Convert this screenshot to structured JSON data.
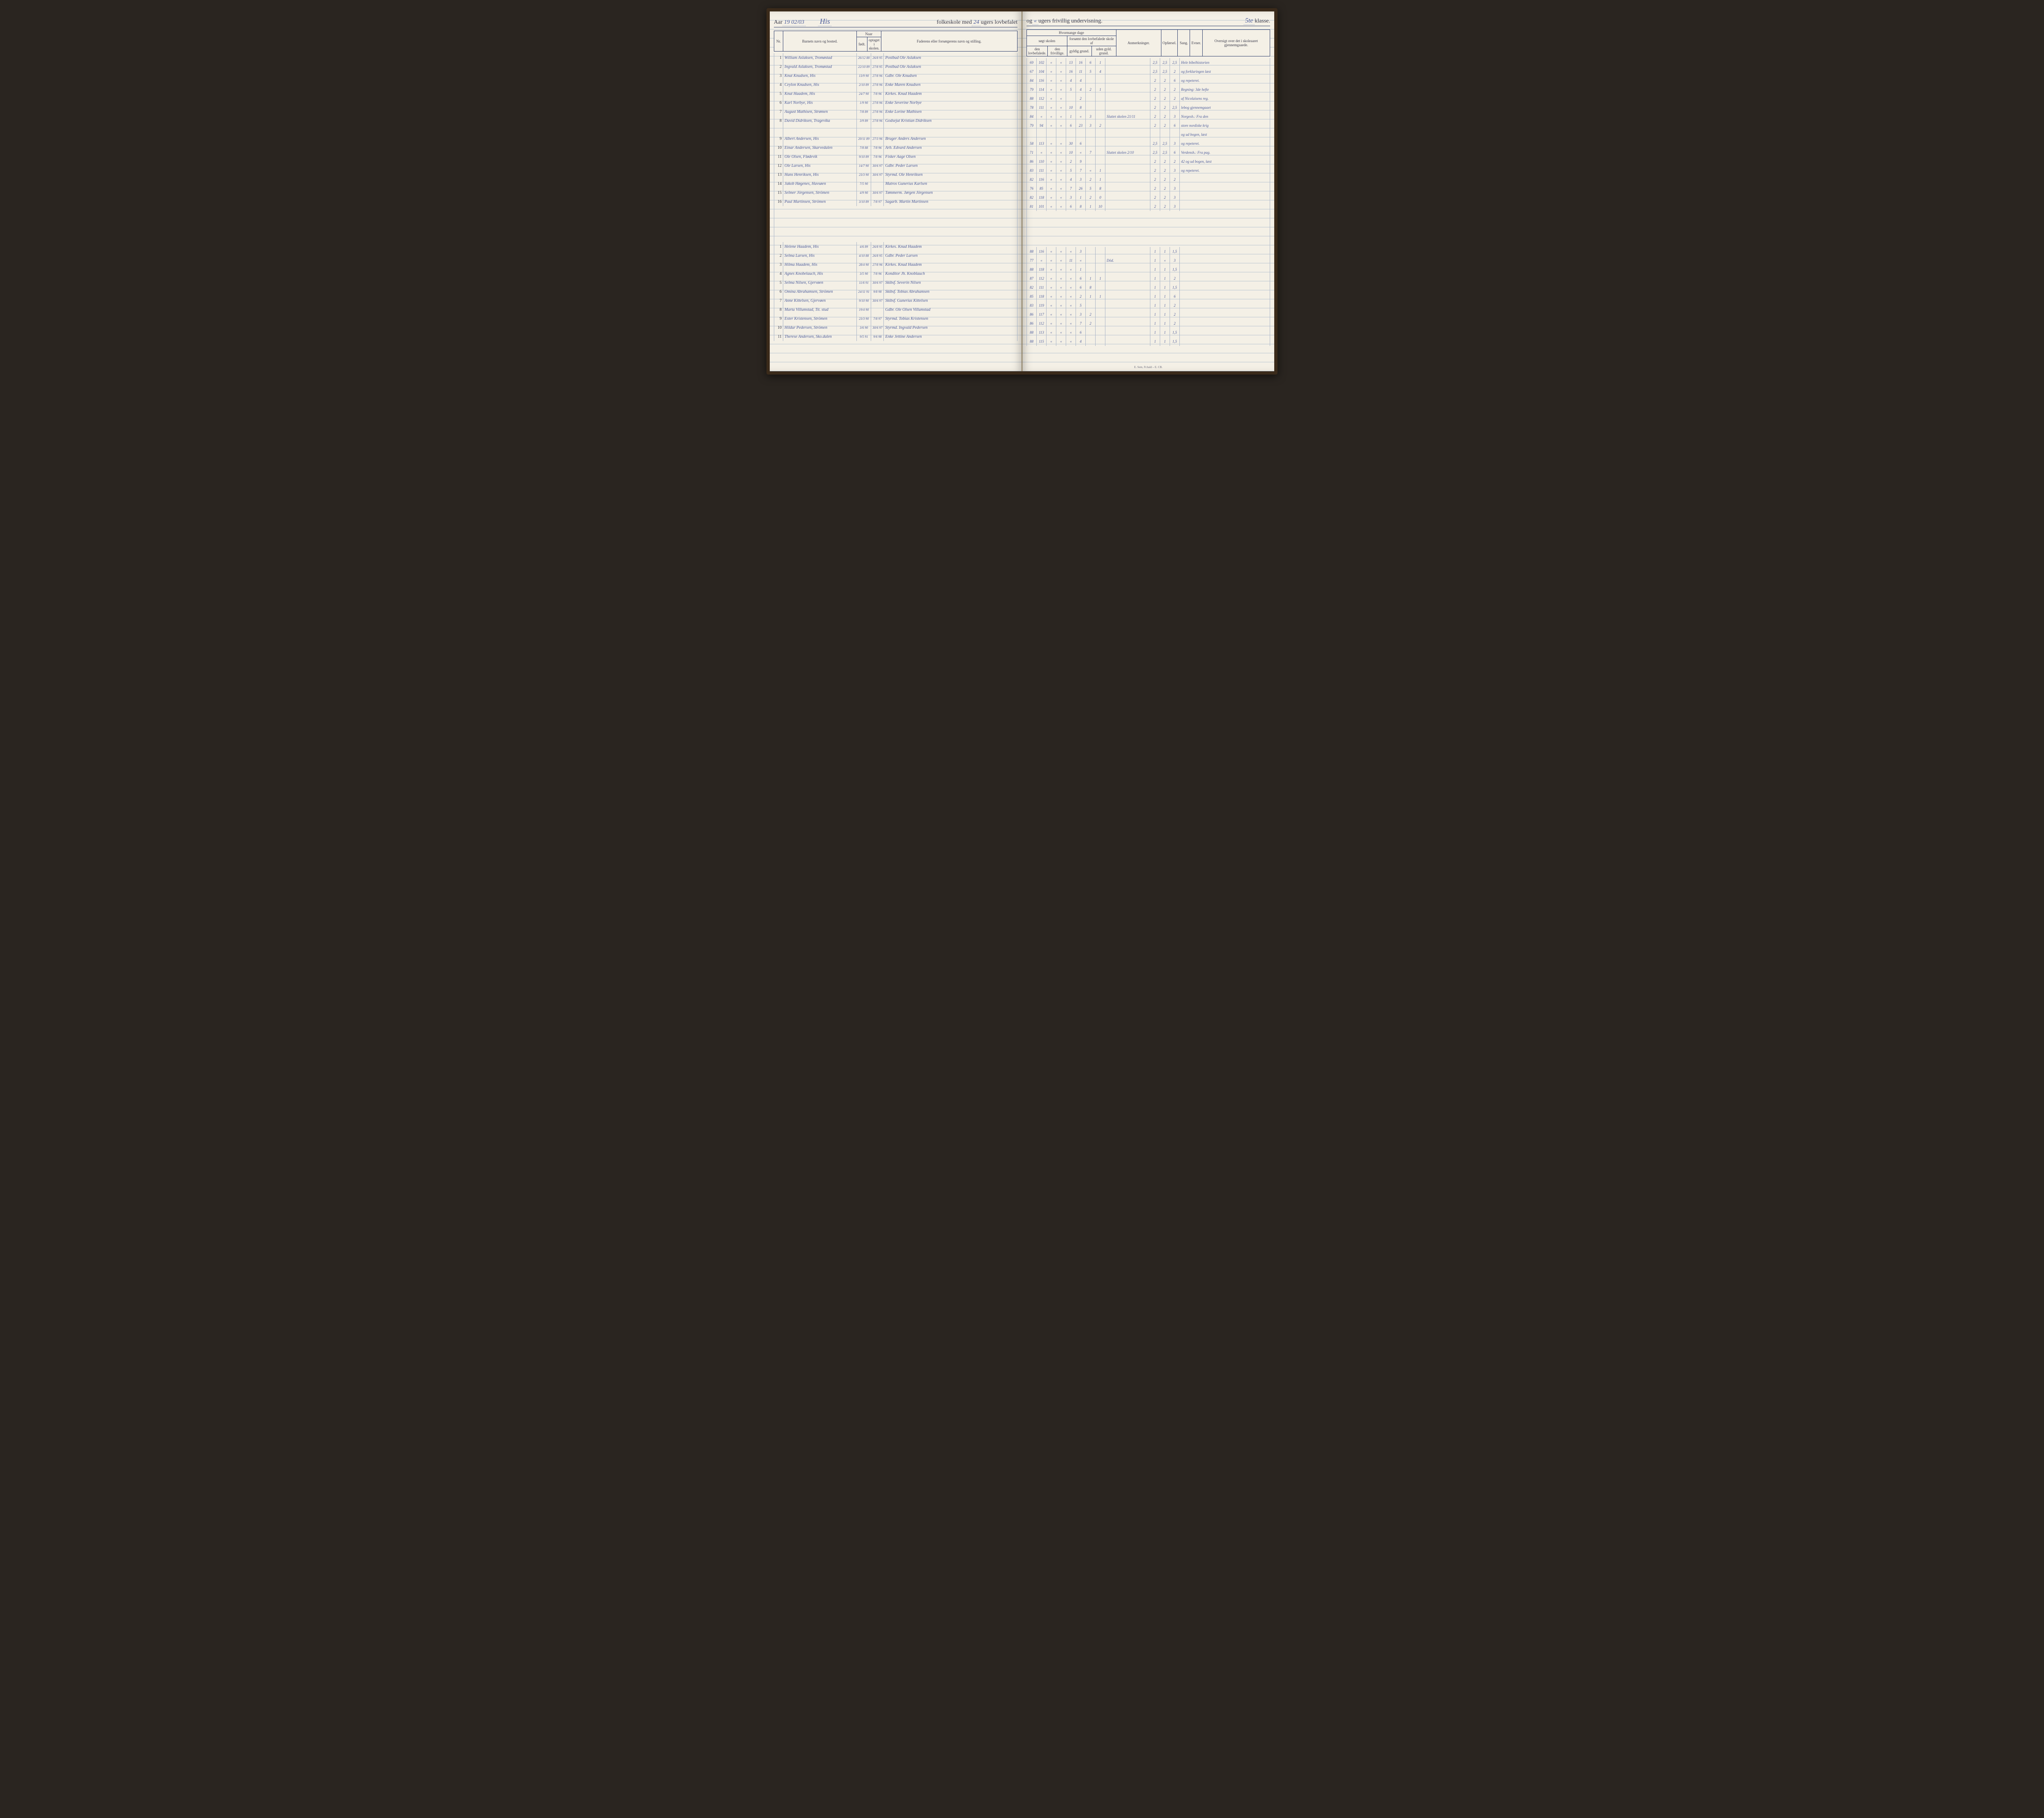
{
  "header": {
    "year_label": "Aar",
    "year_value": "19 02/03",
    "school_name": "His",
    "printed_mid": "folkeskole med",
    "weeks_mandatory": "24",
    "printed_mid2": "ugers lovbefalet",
    "printed_right1": "og",
    "weeks_voluntary": "«",
    "printed_right2": "ugers frivillig undervisning.",
    "klasse_num": "5te",
    "klasse_label": "klasse."
  },
  "columns_left": {
    "nr": "Nr.",
    "name": "Barnets navn og bosted.",
    "naar": "Naar",
    "fodt": "født.",
    "optaget": "optaget i skolen.",
    "father": "Faderens eller forsørgerens navn og stilling."
  },
  "columns_right": {
    "hvormange": "Hvormange dage",
    "sogt": "søgt skolen",
    "lovbef": "den lovbefalede.",
    "friv": "den frivillige.",
    "forsomt": "forsømt den lovbefalede skole af",
    "gyldig": "gyldig grund.",
    "uden": "uden gyld. grund.",
    "anm": "Anmerkninger.",
    "opforsel": "Opførsel.",
    "sang": "Sang.",
    "evner": "Evner.",
    "oversigt": "Oversigt over det i skoleaaret gjennemgaaede."
  },
  "boys": [
    {
      "nr": "1",
      "name": "William Aslaksen, Tromøstad",
      "fodt": "26/12 88",
      "opt": "26/8 95",
      "father": "Postbud Ole Aslaksen",
      "d1": "69",
      "d2": "102",
      "d3": "«",
      "d4": "«",
      "f1": "13",
      "f2": "16",
      "f3": "6",
      "f4": "1",
      "anm": "",
      "op": "2,5",
      "sa": "2,5",
      "ev": "2,5",
      "ov": "3",
      "note": "Hele bibelhistorien"
    },
    {
      "nr": "2",
      "name": "Ingvald Aslaksen, Tromøstad",
      "fodt": "22/10 89",
      "opt": "27/8 95",
      "father": "Postbud Ole Aslaksen",
      "d1": "67",
      "d2": "104",
      "d3": "«",
      "d4": "«",
      "f1": "16",
      "f2": "11",
      "f3": "5",
      "f4": "4",
      "anm": "",
      "op": "2,5",
      "sa": "2,5",
      "ev": "2",
      "ov": "3",
      "note": "og forklaringen læst"
    },
    {
      "nr": "3",
      "name": "Knut Knudsen, His",
      "fodt": "13/9 90",
      "opt": "27/8 96",
      "father": "Gdbr. Ole Knudsen",
      "d1": "84",
      "d2": "116",
      "d3": "«",
      "d4": "«",
      "f1": "4",
      "f2": "4",
      "f3": "",
      "f4": "",
      "anm": "",
      "op": "2",
      "sa": "2",
      "ev": "6",
      "ov": "2,5",
      "note": "og repeteret."
    },
    {
      "nr": "4",
      "name": "Ceylon Knudsen, His",
      "fodt": "2/10 89",
      "opt": "27/8 96",
      "father": "Enke Maren Knudsen",
      "d1": "79",
      "d2": "114",
      "d3": "«",
      "d4": "«",
      "f1": "5",
      "f2": "4",
      "f3": "2",
      "f4": "1",
      "anm": "",
      "op": "2",
      "sa": "2",
      "ev": "2",
      "ov": "2,5",
      "note": "Regning: 3de hefte"
    },
    {
      "nr": "5",
      "name": "Knut Haadem, His",
      "fodt": "24/7 90",
      "opt": "7/8 96",
      "father": "Kirkes. Knud Haadem",
      "d1": "88",
      "d2": "112",
      "d3": "«",
      "d4": "«",
      "f1": "",
      "f2": "2",
      "f3": "",
      "f4": "",
      "anm": "",
      "op": "2",
      "sa": "2",
      "ev": "2",
      "ov": "2",
      "note": "af Nicolaisens reg."
    },
    {
      "nr": "6",
      "name": "Karl Norbye, His",
      "fodt": "1/9 90",
      "opt": "27/8 96",
      "father": "Enke Severine Norbye",
      "d1": "78",
      "d2": "111",
      "d3": "«",
      "d4": "«",
      "f1": "10",
      "f2": "8",
      "f3": "",
      "f4": "",
      "anm": "",
      "op": "2",
      "sa": "2",
      "ev": "2,5",
      "ov": "2",
      "note": "lebog gjennemgaaet"
    },
    {
      "nr": "7",
      "name": "August Mathisen, Strømen",
      "fodt": "7/8 89",
      "opt": "27/8 96",
      "father": "Enke Lorine Mathisen",
      "d1": "84",
      "d2": "«",
      "d3": "«",
      "d4": "«",
      "f1": "1",
      "f2": "«",
      "f3": "3",
      "f4": "",
      "anm": "Sluttet skolen 21/11",
      "op": "2",
      "sa": "2",
      "ev": "3",
      "ov": "2,5",
      "note": "Norgesh.: Fra den"
    },
    {
      "nr": "8",
      "name": "David Didriksen, Tragevika",
      "fodt": "3/9 89",
      "opt": "27/8 96",
      "father": "Godsejut Kristian Didriksen",
      "d1": "79",
      "d2": "94",
      "d3": "«",
      "d4": "«",
      "f1": "6",
      "f2": "23",
      "f3": "3",
      "f4": "2",
      "anm": "",
      "op": "2",
      "sa": "2",
      "ev": "6",
      "ov": "2",
      "note": "store nordiske krig"
    },
    {
      "nr": "",
      "name": "",
      "fodt": "",
      "opt": "",
      "father": "",
      "d1": "",
      "d2": "",
      "d3": "",
      "d4": "",
      "f1": "",
      "f2": "",
      "f3": "",
      "f4": "",
      "anm": "",
      "op": "",
      "sa": "",
      "ev": "",
      "ov": "",
      "note": "og ud bogen, læst"
    },
    {
      "nr": "9",
      "name": "Albert Andersen, His",
      "fodt": "20/11 89",
      "opt": "27/3 96",
      "father": "Bruger Anders Andersen",
      "d1": "58",
      "d2": "113",
      "d3": "«",
      "d4": "«",
      "f1": "30",
      "f2": "6",
      "f3": "",
      "f4": "",
      "anm": "",
      "op": "2,5",
      "sa": "2,5",
      "ev": "3",
      "ov": "3",
      "note": "og repeteret."
    },
    {
      "nr": "10",
      "name": "Einar Andersen, Skarvedalen",
      "fodt": "7/8 88",
      "opt": "7/8 96",
      "father": "Arb. Edvard Andersen",
      "d1": "71",
      "d2": "«",
      "d3": "«",
      "d4": "«",
      "f1": "10",
      "f2": "«",
      "f3": "7",
      "f4": "",
      "anm": "Sluttet skolen 2/10",
      "op": "2,5",
      "sa": "2,5",
      "ev": "6",
      "ov": "3",
      "note": "Verdensh.: Fra pag."
    },
    {
      "nr": "11",
      "name": "Ole Olsen, Flødevik",
      "fodt": "9/10 89",
      "opt": "7/8 96",
      "father": "Fisker Aage Olsen",
      "d1": "86",
      "d2": "110",
      "d3": "«",
      "d4": "«",
      "f1": "2",
      "f2": "9",
      "f3": "",
      "f4": "",
      "anm": "",
      "op": "2",
      "sa": "2",
      "ev": "2",
      "ov": "3",
      "note": "42 og ud bogen, læst"
    },
    {
      "nr": "12",
      "name": "Ole Larsen, His",
      "fodt": "14/7 90",
      "opt": "30/6 97",
      "father": "Gdbr. Peder Larsen",
      "d1": "83",
      "d2": "111",
      "d3": "«",
      "d4": "«",
      "f1": "5",
      "f2": "7",
      "f3": "«",
      "f4": "1",
      "anm": "",
      "op": "2",
      "sa": "2",
      "ev": "3",
      "ov": "2,5",
      "note": "og repeteret."
    },
    {
      "nr": "13",
      "name": "Hans Henriksen, His",
      "fodt": "23/3 90",
      "opt": "30/6 97",
      "father": "Styrmd. Ole Henriksen",
      "d1": "82",
      "d2": "116",
      "d3": "«",
      "d4": "«",
      "f1": "4",
      "f2": "3",
      "f3": "2",
      "f4": "1",
      "anm": "",
      "op": "2",
      "sa": "2",
      "ev": "2",
      "ov": "2",
      "note": ""
    },
    {
      "nr": "14",
      "name": "Jakob Høgenes, Havsøen",
      "fodt": "7/5 90",
      "opt": "",
      "father": "Matros Gunerius Karlsen",
      "d1": "76",
      "d2": "85",
      "d3": "«",
      "d4": "«",
      "f1": "7",
      "f2": "26",
      "f3": "5",
      "f4": "8",
      "anm": "",
      "op": "2",
      "sa": "2",
      "ev": "3",
      "ov": "2,5",
      "note": ""
    },
    {
      "nr": "15",
      "name": "Selmer Jörgensen, Strömen",
      "fodt": "4/9 90",
      "opt": "30/6 97",
      "father": "Tømmerm. Jørgen Jörgensen",
      "d1": "82",
      "d2": "118",
      "d3": "«",
      "d4": "«",
      "f1": "3",
      "f2": "1",
      "f3": "2",
      "f4": "0",
      "anm": "",
      "op": "2",
      "sa": "2",
      "ev": "3",
      "ov": "3",
      "note": ""
    },
    {
      "nr": "16",
      "name": "Paul Martinsen, Strömen",
      "fodt": "3/10 89",
      "opt": "7/8 97",
      "father": "Sagarb. Martin Martinsen",
      "d1": "81",
      "d2": "101",
      "d3": "«",
      "d4": "«",
      "f1": "6",
      "f2": "8",
      "f3": "1",
      "f4": "10",
      "anm": "",
      "op": "2",
      "sa": "2",
      "ev": "3",
      "ov": "2",
      "note": ""
    }
  ],
  "girls": [
    {
      "nr": "1",
      "name": "Helene Haadem, His",
      "fodt": "4/6 89",
      "opt": "26/8 95",
      "father": "Kirkes. Knud Haadem",
      "d1": "88",
      "d2": "116",
      "d3": "«",
      "d4": "«",
      "f1": "«",
      "f2": "3",
      "f3": "",
      "f4": "",
      "anm": "",
      "op": "1",
      "sa": "1",
      "ev": "1,5",
      "ov": "2,5",
      "note": ""
    },
    {
      "nr": "2",
      "name": "Selma Larsen, His",
      "fodt": "4/10 88",
      "opt": "26/8 95",
      "father": "Gdbr. Peder Larsen",
      "d1": "77",
      "d2": "«",
      "d3": "«",
      "d4": "«",
      "f1": "11",
      "f2": "«",
      "f3": "",
      "f4": "",
      "anm": "Död.",
      "op": "1",
      "sa": "«",
      "ev": "3",
      "ov": "2",
      "note": ""
    },
    {
      "nr": "3",
      "name": "Hilma Haadem, His",
      "fodt": "28/4 90",
      "opt": "27/8 96",
      "father": "Kirkes. Knud Haadem",
      "d1": "88",
      "d2": "118",
      "d3": "«",
      "d4": "«",
      "f1": "«",
      "f2": "1",
      "f3": "",
      "f4": "",
      "anm": "",
      "op": "1",
      "sa": "1",
      "ev": "1,5",
      "ov": "2",
      "note": ""
    },
    {
      "nr": "4",
      "name": "Agnes Knobelauch, His",
      "fodt": "3/5 90",
      "opt": "7/8 96",
      "father": "Konditor Jh. Knoblauch",
      "d1": "87",
      "d2": "112",
      "d3": "«",
      "d4": "«",
      "f1": "«",
      "f2": "6",
      "f3": "1",
      "f4": "1",
      "anm": "",
      "op": "1",
      "sa": "1",
      "ev": "2",
      "ov": "3",
      "note": ""
    },
    {
      "nr": "5",
      "name": "Selma Nilsen, Gjervøen",
      "fodt": "11/6 91",
      "opt": "30/6 97",
      "father": "Skibsf. Severin Nilsen",
      "d1": "82",
      "d2": "111",
      "d3": "«",
      "d4": "«",
      "f1": "«",
      "f2": "6",
      "f3": "8",
      "f4": "",
      "anm": "",
      "op": "1",
      "sa": "1",
      "ev": "1,5",
      "ov": "2",
      "note": ""
    },
    {
      "nr": "6",
      "name": "Omina Abrahamsen, Strömen",
      "fodt": "24/11 91",
      "opt": "9/8 98",
      "father": "Skibsf. Tobias Abrahamsen",
      "d1": "85",
      "d2": "118",
      "d3": "«",
      "d4": "«",
      "f1": "«",
      "f2": "2",
      "f3": "1",
      "f4": "1",
      "anm": "",
      "op": "1",
      "sa": "1",
      "ev": "6",
      "ov": "2",
      "note": ""
    },
    {
      "nr": "7",
      "name": "Anne Kittelsen, Gjervøen",
      "fodt": "9/10 90",
      "opt": "30/6 97",
      "father": "Skibsf. Gunerius Kittelsen",
      "d1": "83",
      "d2": "119",
      "d3": "«",
      "d4": "«",
      "f1": "«",
      "f2": "5",
      "f3": "",
      "f4": "",
      "anm": "",
      "op": "1",
      "sa": "1",
      "ev": "2",
      "ov": "2,5",
      "note": ""
    },
    {
      "nr": "8",
      "name": "Marta Villumstad, Tit. stud",
      "fodt": "19/4 90",
      "opt": "",
      "father": "Gdbr. Ole Olsen Villumstad",
      "d1": "86",
      "d2": "117",
      "d3": "«",
      "d4": "«",
      "f1": "«",
      "f2": "3",
      "f3": "2",
      "f4": "",
      "anm": "",
      "op": "1",
      "sa": "1",
      "ev": "2",
      "ov": "3",
      "note": ""
    },
    {
      "nr": "9",
      "name": "Ester Kristensen, Strömen",
      "fodt": "23/3 90",
      "opt": "7/8 97",
      "father": "Styrmd. Tobias Kristensen",
      "d1": "86",
      "d2": "112",
      "d3": "«",
      "d4": "«",
      "f1": "«",
      "f2": "7",
      "f3": "2",
      "f4": "",
      "anm": "",
      "op": "1",
      "sa": "1",
      "ev": "2",
      "ov": "2",
      "note": ""
    },
    {
      "nr": "10",
      "name": "Hildur Pedersen, Strömen",
      "fodt": "3/6 90",
      "opt": "30/6 97",
      "father": "Styrmd. Ingvald Pedersen",
      "d1": "88",
      "d2": "113",
      "d3": "«",
      "d4": "«",
      "f1": "«",
      "f2": "6",
      "f3": "",
      "f4": "",
      "anm": "",
      "op": "1",
      "sa": "1",
      "ev": "1,5",
      "ov": "2",
      "note": ""
    },
    {
      "nr": "11",
      "name": "Therese Andersen, Sko.dalen",
      "fodt": "9/5 91",
      "opt": "9/6 98",
      "father": "Enke Jettine Andersen",
      "d1": "88",
      "d2": "115",
      "d3": "«",
      "d4": "«",
      "f1": "«",
      "f2": "4",
      "f3": "",
      "f4": "",
      "anm": "",
      "op": "1",
      "sa": "1",
      "ev": "1,5",
      "ov": "2",
      "note": ""
    }
  ],
  "footer": "E. Sem, Fr.hald – E. CB."
}
